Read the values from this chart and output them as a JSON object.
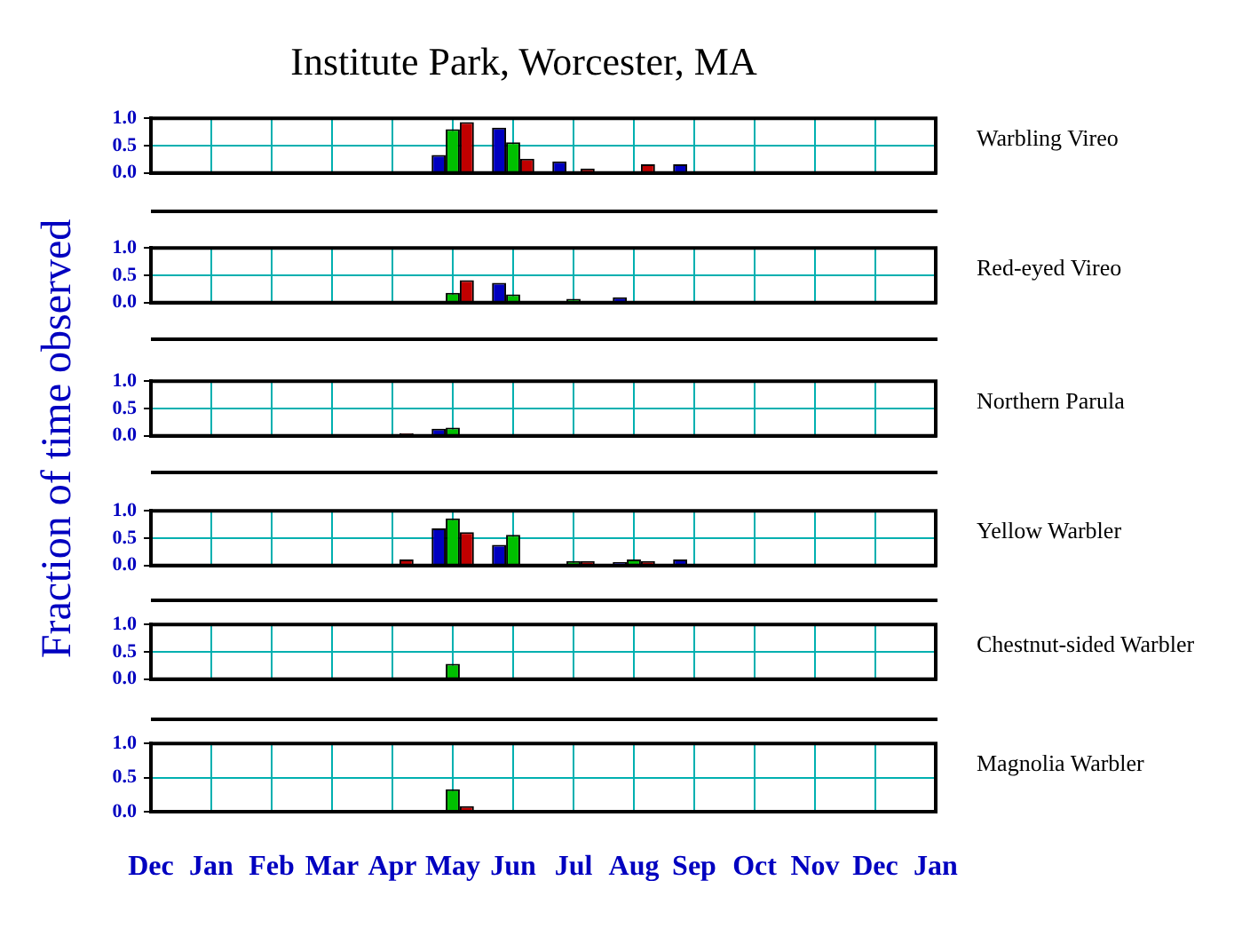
{
  "chart_data": [
    {
      "type": "bar",
      "title": "Institute Park, Worcester, MA",
      "ylabel": "Fraction of time observed",
      "annotations": [
        "Warbling Vireo"
      ],
      "categories": [
        null,
        null,
        null,
        null,
        null,
        null,
        null,
        null,
        null,
        null,
        null,
        null,
        null,
        null
      ],
      "series": [
        {
          "color": "#0000c0",
          "values": [
            null,
            null,
            null,
            null,
            null,
            0.33,
            0.83,
            0.21,
            null,
            0.16,
            null,
            null,
            null,
            null
          ]
        },
        {
          "color": "#00c000",
          "values": [
            null,
            null,
            null,
            null,
            null,
            0.8,
            0.56,
            null,
            null,
            null,
            null,
            null,
            null,
            null
          ]
        },
        {
          "color": "#c00000",
          "values": [
            null,
            null,
            null,
            null,
            null,
            0.93,
            0.26,
            0.08,
            0.16,
            null,
            null,
            null,
            null,
            null
          ]
        }
      ],
      "ylim": [
        0,
        1
      ],
      "yticks": [
        {
          "value": 0,
          "label": "0.0"
        },
        {
          "value": 0.5,
          "label": "0.5"
        },
        {
          "value": 1,
          "label": "1.0"
        }
      ],
      "grid": true,
      "legend": false,
      "tick_labels": "y"
    },
    {
      "type": "bar",
      "annotations": [
        "Red-eyed Vireo"
      ],
      "categories": [
        null,
        null,
        null,
        null,
        null,
        null,
        null,
        null,
        null,
        null,
        null,
        null,
        null,
        null
      ],
      "series": [
        {
          "color": "#0000c0",
          "values": [
            null,
            null,
            null,
            null,
            null,
            null,
            0.36,
            null,
            0.1,
            null,
            null,
            null,
            null,
            null
          ]
        },
        {
          "color": "#00c000",
          "values": [
            null,
            null,
            null,
            null,
            null,
            0.18,
            0.15,
            0.07,
            null,
            null,
            null,
            null,
            null,
            null
          ]
        },
        {
          "color": "#c00000",
          "values": [
            null,
            null,
            null,
            null,
            null,
            0.41,
            null,
            null,
            null,
            null,
            null,
            null,
            null,
            null
          ]
        }
      ],
      "ylim": [
        0,
        1
      ],
      "yticks": [
        {
          "value": 0,
          "label": "0.0"
        },
        {
          "value": 0.5,
          "label": "0.5"
        },
        {
          "value": 1,
          "label": "1.0"
        }
      ],
      "grid": true,
      "legend": false,
      "tick_labels": "y"
    },
    {
      "type": "bar",
      "annotations": [
        "Northern Parula"
      ],
      "categories": [
        null,
        null,
        null,
        null,
        null,
        null,
        null,
        null,
        null,
        null,
        null,
        null,
        null,
        null
      ],
      "series": [
        {
          "color": "#0000c0",
          "values": [
            null,
            null,
            null,
            null,
            null,
            0.13,
            null,
            null,
            null,
            null,
            null,
            null,
            null,
            null
          ]
        },
        {
          "color": "#00c000",
          "values": [
            null,
            null,
            null,
            null,
            null,
            0.15,
            null,
            null,
            null,
            null,
            null,
            null,
            null,
            null
          ]
        },
        {
          "color": "#c00000",
          "values": [
            null,
            null,
            null,
            null,
            0.05,
            null,
            null,
            null,
            null,
            null,
            null,
            null,
            null,
            null
          ]
        }
      ],
      "ylim": [
        0,
        1
      ],
      "yticks": [
        {
          "value": 0,
          "label": "0.0"
        },
        {
          "value": 0.5,
          "label": "0.5"
        },
        {
          "value": 1,
          "label": "1.0"
        }
      ],
      "grid": true,
      "legend": false,
      "tick_labels": "y"
    },
    {
      "type": "bar",
      "annotations": [
        "Yellow Warbler"
      ],
      "categories": [
        null,
        null,
        null,
        null,
        null,
        null,
        null,
        null,
        null,
        null,
        null,
        null,
        null,
        null
      ],
      "series": [
        {
          "color": "#0000c0",
          "values": [
            null,
            null,
            null,
            null,
            null,
            0.68,
            0.38,
            null,
            0.06,
            0.11,
            null,
            null,
            null,
            null
          ]
        },
        {
          "color": "#00c000",
          "values": [
            null,
            null,
            null,
            null,
            null,
            0.86,
            0.56,
            0.08,
            0.11,
            null,
            null,
            null,
            null,
            null
          ]
        },
        {
          "color": "#c00000",
          "values": [
            null,
            null,
            null,
            null,
            0.11,
            0.61,
            null,
            0.08,
            0.08,
            null,
            null,
            null,
            null,
            null
          ]
        }
      ],
      "ylim": [
        0,
        1
      ],
      "yticks": [
        {
          "value": 0,
          "label": "0.0"
        },
        {
          "value": 0.5,
          "label": "0.5"
        },
        {
          "value": 1,
          "label": "1.0"
        }
      ],
      "grid": true,
      "legend": false,
      "tick_labels": "y"
    },
    {
      "type": "bar",
      "annotations": [
        "Chestnut-sided Warbler"
      ],
      "categories": [
        null,
        null,
        null,
        null,
        null,
        null,
        null,
        null,
        null,
        null,
        null,
        null,
        null,
        null
      ],
      "series": [
        {
          "color": "#0000c0",
          "values": [
            null,
            null,
            null,
            null,
            null,
            null,
            null,
            null,
            null,
            null,
            null,
            null,
            null,
            null
          ]
        },
        {
          "color": "#00c000",
          "values": [
            null,
            null,
            null,
            null,
            null,
            0.28,
            null,
            null,
            null,
            null,
            null,
            null,
            null,
            null
          ]
        },
        {
          "color": "#c00000",
          "values": [
            null,
            null,
            null,
            null,
            null,
            null,
            null,
            null,
            null,
            null,
            null,
            null,
            null,
            null
          ]
        }
      ],
      "ylim": [
        0,
        1
      ],
      "yticks": [
        {
          "value": 0,
          "label": "0.0"
        },
        {
          "value": 0.5,
          "label": "0.5"
        },
        {
          "value": 1,
          "label": "1.0"
        }
      ],
      "grid": true,
      "legend": false,
      "tick_labels": "y"
    },
    {
      "type": "bar",
      "annotations": [
        "Magnolia Warbler"
      ],
      "categories": [
        "Dec",
        "Jan",
        "Feb",
        "Mar",
        "Apr",
        "May",
        "Jun",
        "Jul",
        "Aug",
        "Sep",
        "Oct",
        "Nov",
        "Dec",
        "Jan"
      ],
      "series": [
        {
          "color": "#0000c0",
          "values": [
            null,
            null,
            null,
            null,
            null,
            null,
            null,
            null,
            null,
            null,
            null,
            null,
            null,
            null
          ]
        },
        {
          "color": "#00c000",
          "values": [
            null,
            null,
            null,
            null,
            null,
            0.33,
            null,
            null,
            null,
            null,
            null,
            null,
            null,
            null
          ]
        },
        {
          "color": "#c00000",
          "values": [
            null,
            null,
            null,
            null,
            null,
            0.08,
            null,
            null,
            null,
            null,
            null,
            null,
            null,
            null
          ]
        }
      ],
      "ylim": [
        0,
        1
      ],
      "yticks": [
        {
          "value": 0,
          "label": "0.0"
        },
        {
          "value": 0.5,
          "label": "0.5"
        },
        {
          "value": 1,
          "label": "1.0"
        }
      ],
      "grid": true,
      "legend": false
    }
  ]
}
